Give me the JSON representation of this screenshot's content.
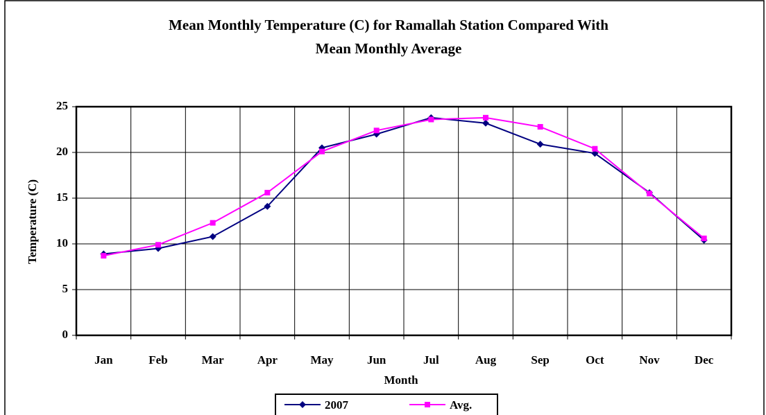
{
  "chart_data": {
    "type": "line",
    "title": [
      "Mean Monthly Temperature (C)  for Ramallah Station Compared With",
      "Mean Monthly Average"
    ],
    "xlabel": "Month",
    "ylabel": "Temperature (C)",
    "categories": [
      "Jan",
      "Feb",
      "Mar",
      "Apr",
      "May",
      "Jun",
      "Jul",
      "Aug",
      "Sep",
      "Oct",
      "Nov",
      "Dec"
    ],
    "series": [
      {
        "name": "2007",
        "color": "#000080",
        "marker": "diamond",
        "values": [
          8.9,
          9.5,
          10.8,
          14.1,
          20.5,
          22.0,
          23.8,
          23.2,
          20.9,
          19.9,
          15.6,
          10.4
        ]
      },
      {
        "name": "Avg.",
        "color": "#ff00ff",
        "marker": "square",
        "values": [
          8.7,
          9.9,
          12.3,
          15.6,
          20.1,
          22.4,
          23.6,
          23.8,
          22.8,
          20.4,
          15.5,
          10.6
        ]
      }
    ],
    "ylim": [
      0,
      25
    ],
    "yticks": [
      0,
      5,
      10,
      15,
      20,
      25
    ],
    "grid": true,
    "legend": "bottom"
  }
}
